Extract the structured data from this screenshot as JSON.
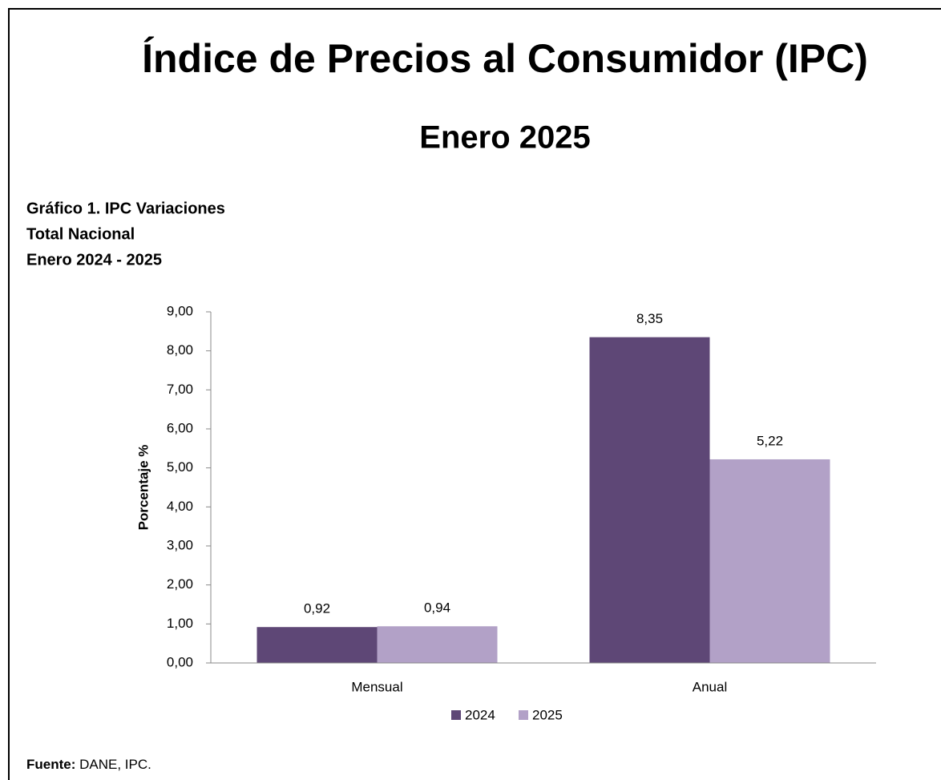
{
  "chart_data": {
    "type": "bar",
    "title": "Índice de Precios al Consumidor (IPC)",
    "subtitle": "Enero 2025",
    "caption": [
      "Gráfico 1. IPC Variaciones",
      "Total Nacional",
      "Enero 2024 - 2025"
    ],
    "ylabel": "Porcentaje %",
    "categories": [
      "Mensual",
      "Anual"
    ],
    "series": [
      {
        "name": "2024",
        "color": "#5e4776",
        "values": [
          0.92,
          8.35
        ],
        "value_labels": [
          "0,92",
          "8,35"
        ]
      },
      {
        "name": "2025",
        "color": "#b2a1c7",
        "values": [
          0.94,
          5.22
        ],
        "value_labels": [
          "0,94",
          "5,22"
        ]
      }
    ],
    "ylim": [
      0,
      9
    ],
    "yticks": [
      {
        "value": 0,
        "label": "0,00"
      },
      {
        "value": 1,
        "label": "1,00"
      },
      {
        "value": 2,
        "label": "2,00"
      },
      {
        "value": 3,
        "label": "3,00"
      },
      {
        "value": 4,
        "label": "4,00"
      },
      {
        "value": 5,
        "label": "5,00"
      },
      {
        "value": 6,
        "label": "6,00"
      },
      {
        "value": 7,
        "label": "7,00"
      },
      {
        "value": 8,
        "label": "8,00"
      },
      {
        "value": 9,
        "label": "9,00"
      }
    ],
    "grid": false,
    "legend": "bottom",
    "source_label": "Fuente:",
    "source": "DANE, IPC."
  }
}
